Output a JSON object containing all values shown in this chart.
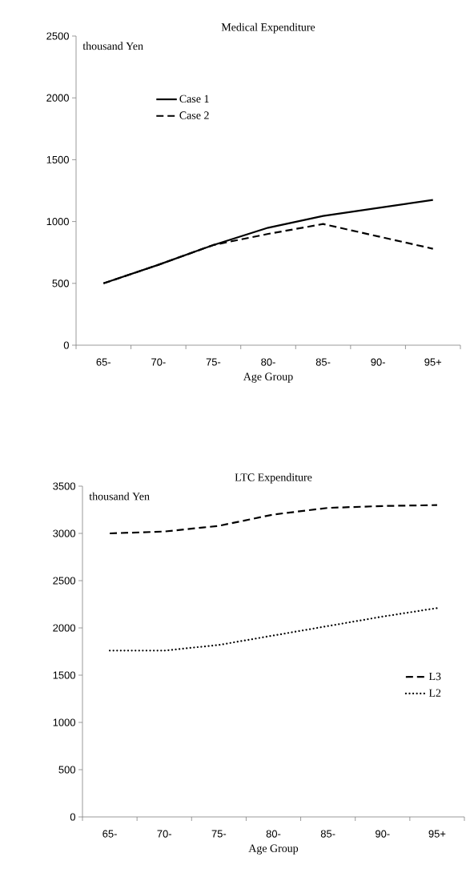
{
  "chart_data": [
    {
      "type": "line",
      "title": "Medical Expenditure",
      "xlabel": "Age Group",
      "ylabel": "thousand Yen",
      "categories": [
        "65-",
        "70-",
        "75-",
        "80-",
        "85-",
        "90-",
        "95+"
      ],
      "ylim": [
        0,
        2500
      ],
      "yticks": [
        0,
        500,
        1000,
        1500,
        2000,
        2500
      ],
      "legend": "top left",
      "series": [
        {
          "name": "Case 1",
          "color": "#000000",
          "line_style": "solid",
          "values": [
            500,
            650,
            810,
            950,
            1045,
            1110,
            1175
          ]
        },
        {
          "name": "Case 2",
          "color": "#000000",
          "line_style": "dashed",
          "values": [
            500,
            650,
            810,
            900,
            980,
            880,
            780
          ]
        }
      ]
    },
    {
      "type": "line",
      "title": "LTC Expenditure",
      "xlabel": "Age Group",
      "ylabel": "thousand Yen",
      "categories": [
        "65-",
        "70-",
        "75-",
        "80-",
        "85-",
        "90-",
        "95+"
      ],
      "ylim": [
        0,
        3500
      ],
      "yticks": [
        0,
        500,
        1000,
        1500,
        2000,
        2500,
        3000,
        3500
      ],
      "legend": "bottom right",
      "series": [
        {
          "name": "L3",
          "color": "#000000",
          "line_style": "dashed",
          "values": [
            3000,
            3020,
            3080,
            3200,
            3270,
            3290,
            3300
          ]
        },
        {
          "name": "L2",
          "color": "#000000",
          "line_style": "dotted",
          "values": [
            1760,
            1760,
            1820,
            1920,
            2020,
            2120,
            2210
          ]
        }
      ]
    }
  ]
}
